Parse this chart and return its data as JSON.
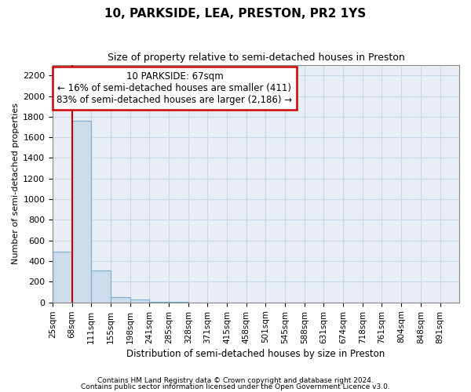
{
  "title": "10, PARKSIDE, LEA, PRESTON, PR2 1YS",
  "subtitle": "Size of property relative to semi-detached houses in Preston",
  "xlabel": "Distribution of semi-detached houses by size in Preston",
  "ylabel": "Number of semi-detached properties",
  "footer1": "Contains HM Land Registry data © Crown copyright and database right 2024.",
  "footer2": "Contains public sector information licensed under the Open Government Licence v3.0.",
  "annotation_line1": "10 PARKSIDE: 67sqm",
  "annotation_line2": "← 16% of semi-detached houses are smaller (411)",
  "annotation_line3": "83% of semi-detached houses are larger (2,186) →",
  "bin_edges": [
    25,
    68,
    111,
    155,
    198,
    241,
    285,
    328,
    371,
    415,
    458,
    501,
    545,
    588,
    631,
    674,
    718,
    761,
    804,
    848,
    891
  ],
  "bar_heights": [
    490,
    1760,
    310,
    50,
    30,
    5,
    2,
    1,
    1,
    1,
    1,
    0,
    0,
    0,
    0,
    0,
    0,
    0,
    0,
    0
  ],
  "bar_color": "#ccdcec",
  "bar_edgecolor": "#7aadcc",
  "red_line_color": "#cc0000",
  "annotation_box_color": "#cc0000",
  "grid_color": "#c8d8e8",
  "background_color": "#e8eef4",
  "ylim": [
    0,
    2300
  ],
  "yticks": [
    0,
    200,
    400,
    600,
    800,
    1000,
    1200,
    1400,
    1600,
    1800,
    2000,
    2200
  ]
}
